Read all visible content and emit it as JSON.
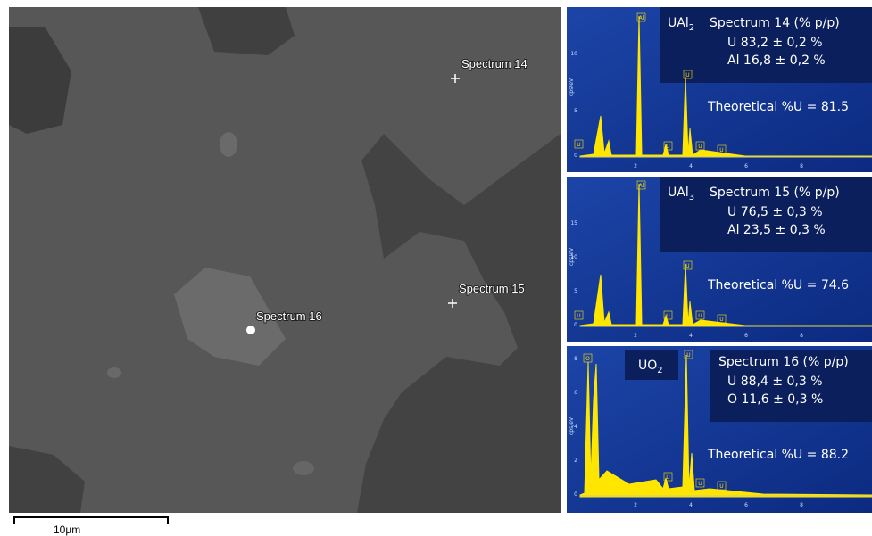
{
  "sem": {
    "labels": [
      "Spectrum 14",
      "Spectrum 15",
      "Spectrum 16"
    ],
    "scale_bar": "10µm"
  },
  "panels": [
    {
      "phase": {
        "base": "UAl",
        "sub": "2"
      },
      "title": "Spectrum 14  (% p/p)",
      "rows": [
        "U   83,2 ± 0,2 %",
        "Al  16,8 ± 0,2 %"
      ],
      "theoretical": "Theoretical %U = 81.5",
      "axis_label": "cps/eV",
      "yticks": [
        "0",
        "5",
        "10"
      ],
      "xticks": [
        "2",
        "4",
        "6",
        "8"
      ],
      "peak_labels": [
        "U",
        "Al",
        "U",
        "U",
        "U",
        "U"
      ]
    },
    {
      "phase": {
        "base": "UAl",
        "sub": "3"
      },
      "title": "Spectrum 15  (% p/p)",
      "rows": [
        "U   76,5 ± 0,3 %",
        "Al  23,5 ± 0,3 %"
      ],
      "theoretical": "Theoretical %U = 74.6",
      "axis_label": "cps/eV",
      "yticks": [
        "0",
        "5",
        "10",
        "15"
      ],
      "xticks": [
        "2",
        "4",
        "6",
        "8"
      ],
      "peak_labels": [
        "U",
        "Al",
        "U",
        "U",
        "U",
        "U"
      ]
    },
    {
      "phase": {
        "base": "UO",
        "sub": "2"
      },
      "title": "Spectrum 16  (% p/p)",
      "rows": [
        "U   88,4 ± 0,3 %",
        "O  11,6 ± 0,3 %"
      ],
      "theoretical": "Theoretical %U = 88.2",
      "axis_label": "cps/eV",
      "yticks": [
        "0",
        "2",
        "4",
        "6",
        "8"
      ],
      "xticks": [
        "2",
        "4",
        "6",
        "8"
      ],
      "peak_labels": [
        "O",
        "U",
        "U",
        "U",
        "U"
      ]
    }
  ]
}
